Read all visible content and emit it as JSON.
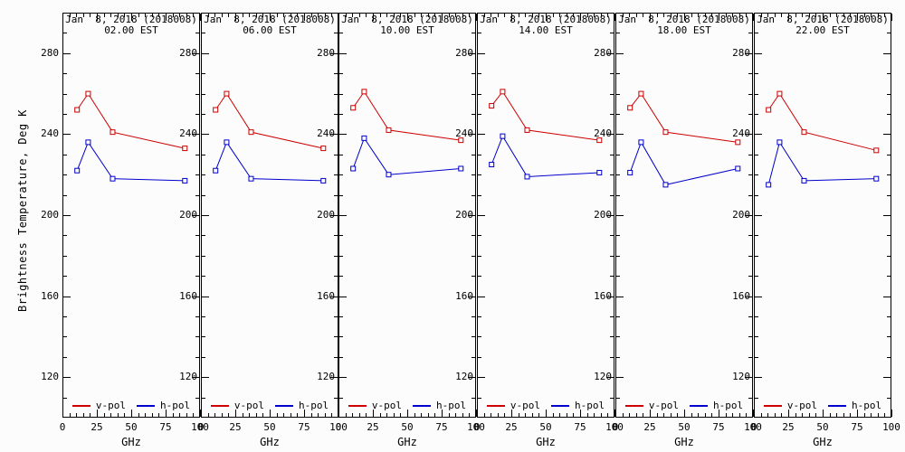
{
  "figure": {
    "y_axis_title": "Brightness Temperature, Deg K",
    "background": "#fcfcfc",
    "frame_color": "#000000",
    "text_color": "#000000"
  },
  "legend": {
    "position": "bottom-inside-each-panel",
    "items": [
      {
        "label": "v-pol",
        "color": "#cc0000"
      },
      {
        "label": "h-pol",
        "color": "#0000cc"
      }
    ]
  },
  "chart_data": {
    "type": "line",
    "x": [
      10.65,
      18.7,
      36.5,
      89
    ],
    "xlabel": "GHz",
    "ylabel": "Brightness Temperature, Deg K",
    "xlim": [
      0,
      100
    ],
    "ylim": [
      100,
      300
    ],
    "xticks": [
      0,
      25,
      50,
      75,
      100
    ],
    "x_minor_step": 5,
    "yticks": [
      120,
      160,
      200,
      240,
      280
    ],
    "y_minor_step": 10,
    "grid": "off",
    "marker": "open-square",
    "series_colors": {
      "v-pol": "#cc0000",
      "h-pol": "#0000cc"
    },
    "panels": [
      {
        "title": "Jan  8, 2018 (2018008)",
        "subtitle": "02.00 EST",
        "series": [
          {
            "name": "v-pol",
            "values": [
              252,
              260,
              241,
              233
            ]
          },
          {
            "name": "h-pol",
            "values": [
              222,
              236,
              218,
              217
            ]
          }
        ]
      },
      {
        "title": "Jan  8, 2018 (2018008)",
        "subtitle": "06.00 EST",
        "series": [
          {
            "name": "v-pol",
            "values": [
              252,
              260,
              241,
              233
            ]
          },
          {
            "name": "h-pol",
            "values": [
              222,
              236,
              218,
              217
            ]
          }
        ]
      },
      {
        "title": "Jan  8, 2018 (2018008)",
        "subtitle": "10.00 EST",
        "series": [
          {
            "name": "v-pol",
            "values": [
              253,
              261,
              242,
              237
            ]
          },
          {
            "name": "h-pol",
            "values": [
              223,
              238,
              220,
              223
            ]
          }
        ]
      },
      {
        "title": "Jan  8, 2018 (2018008)",
        "subtitle": "14.00 EST",
        "series": [
          {
            "name": "v-pol",
            "values": [
              254,
              261,
              242,
              237
            ]
          },
          {
            "name": "h-pol",
            "values": [
              225,
              239,
              219,
              221
            ]
          }
        ]
      },
      {
        "title": "Jan  8, 2018 (2018008)",
        "subtitle": "18.00 EST",
        "series": [
          {
            "name": "v-pol",
            "values": [
              253,
              260,
              241,
              236
            ]
          },
          {
            "name": "h-pol",
            "values": [
              221,
              236,
              215,
              223
            ]
          }
        ]
      },
      {
        "title": "Jan  8, 2018 (2018008)",
        "subtitle": "22.00 EST",
        "series": [
          {
            "name": "v-pol",
            "values": [
              252,
              260,
              241,
              232
            ]
          },
          {
            "name": "h-pol",
            "values": [
              215,
              236,
              217,
              218
            ]
          }
        ]
      }
    ]
  }
}
